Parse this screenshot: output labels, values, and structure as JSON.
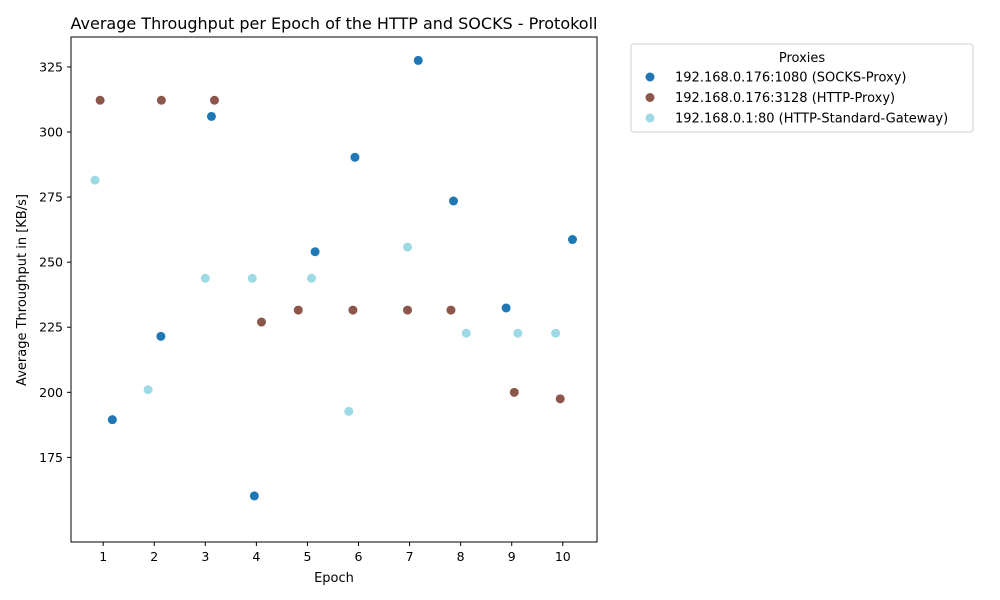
{
  "chart_data": {
    "type": "scatter",
    "title": "Average Throughput per Epoch of the HTTP and SOCKS - Protokoll",
    "xlabel": "Epoch",
    "ylabel": "Average Throughput in [KB/s]",
    "xlim": [
      0.37,
      10.67
    ],
    "ylim": [
      142.5,
      336.5
    ],
    "x_ticks": [
      1,
      2,
      3,
      4,
      5,
      6,
      7,
      8,
      9,
      10
    ],
    "y_ticks": [
      175,
      200,
      225,
      250,
      275,
      300,
      325
    ],
    "grid": false,
    "legend": {
      "title": "Proxies",
      "placement": "outside-top-right"
    },
    "series": [
      {
        "name": "192.168.0.176:1080 (SOCKS-Proxy)",
        "color": "#1f77b4",
        "points": [
          [
            1.18,
            189.5
          ],
          [
            2.13,
            221.5
          ],
          [
            3.12,
            306.0
          ],
          [
            3.96,
            160.2
          ],
          [
            5.15,
            254.0
          ],
          [
            5.93,
            290.3
          ],
          [
            7.17,
            327.5
          ],
          [
            7.86,
            273.5
          ],
          [
            8.89,
            232.4
          ],
          [
            10.19,
            258.7
          ]
        ]
      },
      {
        "name": "192.168.0.176:3128 (HTTP-Proxy)",
        "color": "#8c564b",
        "points": [
          [
            0.94,
            312.2
          ],
          [
            2.14,
            312.2
          ],
          [
            3.18,
            312.2
          ],
          [
            4.1,
            227.0
          ],
          [
            4.82,
            231.6
          ],
          [
            5.89,
            231.6
          ],
          [
            6.96,
            231.6
          ],
          [
            7.81,
            231.6
          ],
          [
            9.05,
            200.0
          ],
          [
            9.95,
            197.5
          ]
        ]
      },
      {
        "name": "192.168.0.1:80 (HTTP-Standard-Gateway)",
        "color": "#9edae5",
        "points": [
          [
            0.84,
            281.5
          ],
          [
            1.88,
            201.0
          ],
          [
            3.0,
            243.8
          ],
          [
            3.92,
            243.8
          ],
          [
            5.08,
            243.8
          ],
          [
            5.81,
            192.7
          ],
          [
            6.96,
            255.8
          ],
          [
            8.11,
            222.7
          ],
          [
            9.12,
            222.7
          ],
          [
            9.86,
            222.7
          ]
        ]
      }
    ]
  }
}
